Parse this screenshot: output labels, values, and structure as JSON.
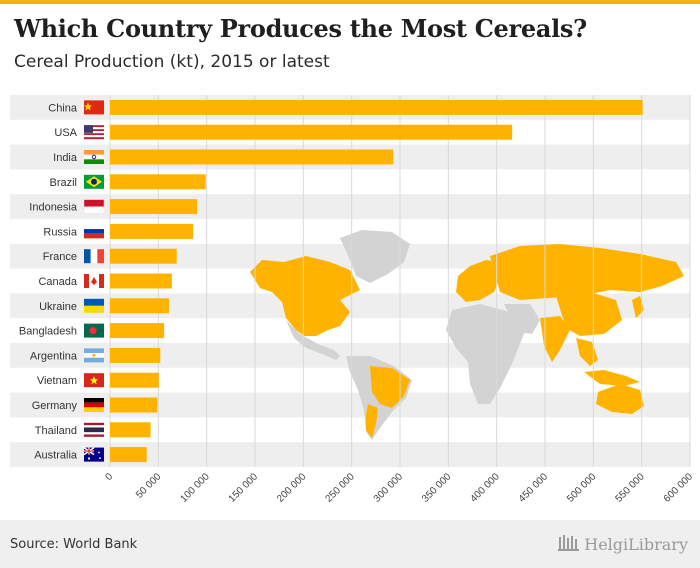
{
  "header": {
    "title": "Which Country Produces the Most Cereals?",
    "subtitle": "Cereal Production (kt), 2015 or latest"
  },
  "footer": {
    "source": "Source: World Bank",
    "brand": "HelgiLibrary"
  },
  "colors": {
    "bar": "#ffb300",
    "accent": "#f6b20f",
    "map_land": "#d3d3d3",
    "map_highlight": "#ffb300"
  },
  "chart_data": {
    "type": "bar",
    "orientation": "horizontal",
    "title": "Which Country Produces the Most Cereals?",
    "subtitle": "Cereal Production (kt), 2015 or latest",
    "categories": [
      "China",
      "USA",
      "India",
      "Brazil",
      "Indonesia",
      "Russia",
      "France",
      "Canada",
      "Ukraine",
      "Bangladesh",
      "Argentina",
      "Vietnam",
      "Germany",
      "Thailand",
      "Australia"
    ],
    "values": [
      551000,
      416000,
      293000,
      99000,
      90000,
      86000,
      69000,
      64000,
      61000,
      56000,
      52000,
      50500,
      49000,
      42000,
      38000
    ],
    "flags": [
      "china-flag",
      "usa-flag",
      "india-flag",
      "brazil-flag",
      "indonesia-flag",
      "russia-flag",
      "france-flag",
      "canada-flag",
      "ukraine-flag",
      "bangladesh-flag",
      "argentina-flag",
      "vietnam-flag",
      "germany-flag",
      "thailand-flag",
      "australia-flag"
    ],
    "xlim": [
      0,
      600000
    ],
    "xticks": [
      0,
      50000,
      100000,
      150000,
      200000,
      250000,
      300000,
      350000,
      400000,
      450000,
      500000,
      550000,
      600000
    ],
    "xtick_labels": [
      "0",
      "50 000",
      "100 000",
      "150 000",
      "200 000",
      "250 000",
      "300 000",
      "350 000",
      "400 000",
      "450 000",
      "500 000",
      "550 000",
      "600 000"
    ],
    "grid": "vertical",
    "xlabel": "",
    "ylabel": ""
  }
}
